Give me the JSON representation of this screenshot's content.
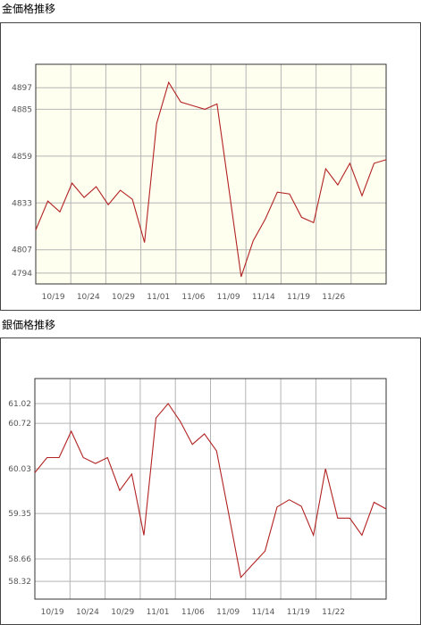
{
  "gold": {
    "title": "金価格推移",
    "chart_data": {
      "type": "line",
      "title": "",
      "xlabel": "",
      "ylabel": "",
      "x_ticks": [
        "10/19",
        "10/24",
        "10/29",
        "11/01",
        "11/06",
        "11/09",
        "11/14",
        "11/19",
        "11/26"
      ],
      "y_ticks": [
        4794,
        4807,
        4833,
        4859,
        4885,
        4897
      ],
      "ylim": [
        4788,
        4910
      ],
      "grid": true,
      "background": "#fffff0",
      "line_color": "#b22222",
      "series": [
        {
          "values": [
            4818,
            4834,
            4828,
            4844,
            4836,
            4842,
            4832,
            4840,
            4835,
            4811,
            4877,
            4900,
            4889,
            4887,
            4885,
            4888,
            4840,
            4792,
            4812,
            4824,
            4839,
            4838,
            4825,
            4822,
            4852,
            4843,
            4855,
            4837,
            4855,
            4857
          ]
        }
      ]
    }
  },
  "silver": {
    "title": "銀価格推移",
    "chart_data": {
      "type": "line",
      "title": "",
      "xlabel": "",
      "ylabel": "",
      "x_ticks": [
        "10/19",
        "10/24",
        "10/29",
        "11/01",
        "11/06",
        "11/09",
        "11/14",
        "11/19",
        "11/22"
      ],
      "y_ticks": [
        58.32,
        58.66,
        59.35,
        60.03,
        60.72,
        61.02
      ],
      "ylim": [
        58.05,
        61.4
      ],
      "grid": true,
      "background": "#ffffff",
      "line_color": "#b22222",
      "series": [
        {
          "values": [
            59.97,
            60.2,
            60.2,
            60.6,
            60.2,
            60.11,
            60.2,
            59.7,
            59.95,
            59.02,
            60.8,
            61.02,
            60.75,
            60.4,
            60.56,
            60.3,
            59.35,
            58.38,
            58.58,
            58.78,
            59.45,
            59.56,
            59.46,
            59.02,
            60.03,
            59.28,
            59.28,
            59.02,
            59.52,
            59.42
          ]
        }
      ]
    }
  }
}
